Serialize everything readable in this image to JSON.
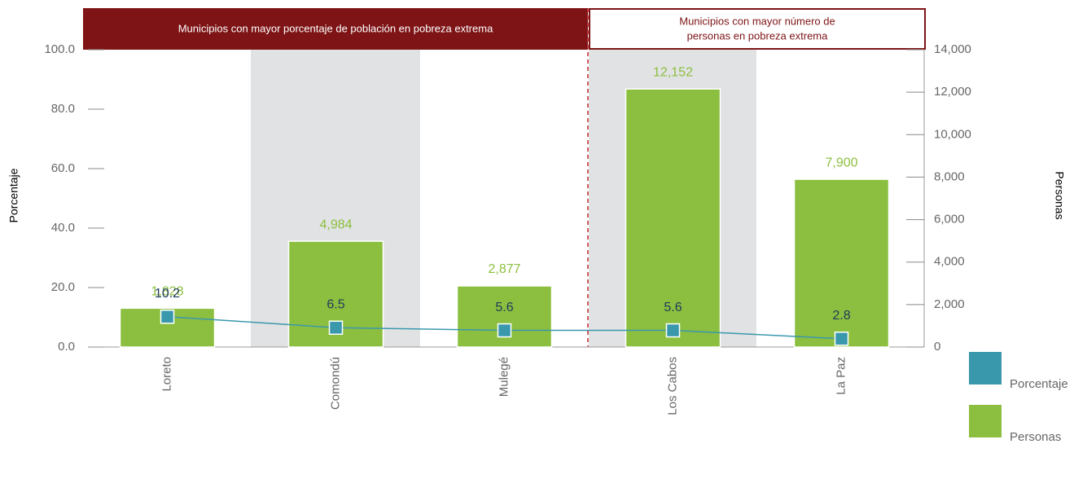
{
  "chart_data": {
    "type": "bar",
    "header_left": "Municipios con mayor porcentaje de población en pobreza extrema",
    "header_right": [
      "Municipios con mayor número de",
      "personas en pobreza extrema"
    ],
    "ylabel": "Porcentaje",
    "y2label": "Personas",
    "categories": [
      "Loreto",
      "Comondú",
      "Mulegé",
      "Los Cabos",
      "La Paz"
    ],
    "series": [
      {
        "name": "Porcentaje",
        "type": "line",
        "axis": "y",
        "color": "#3a98ad",
        "values": [
          10.2,
          6.5,
          5.6,
          5.6,
          2.8
        ]
      },
      {
        "name": "Personas",
        "type": "bar",
        "axis": "y2",
        "color": "#8cbf3f",
        "values": [
          1828,
          4984,
          2877,
          12152,
          7900
        ],
        "value_labels": [
          "1,828",
          "4,984",
          "2,877",
          "12,152",
          "7,900"
        ]
      }
    ],
    "ylim": [
      0,
      100
    ],
    "yticks": [
      {
        "value": 0,
        "label": "0.0"
      },
      {
        "value": 20,
        "label": "20.0"
      },
      {
        "value": 40,
        "label": "40.0"
      },
      {
        "value": 60,
        "label": "60.0"
      },
      {
        "value": 80,
        "label": "80.0"
      },
      {
        "value": 100,
        "label": "100.0"
      }
    ],
    "y2lim": [
      0,
      14000
    ],
    "y2ticks": [
      0,
      {
        "value": 2000,
        "label": "2,000"
      },
      {
        "value": 4000,
        "label": "4,000"
      },
      {
        "value": 6000,
        "label": "6,000"
      },
      {
        "value": 8000,
        "label": "8,000"
      },
      {
        "value": 10000,
        "label": "10,000"
      },
      {
        "value": 12000,
        "label": "12,000"
      },
      {
        "value": 14000,
        "label": "14,000"
      }
    ],
    "legend": "bottom-right"
  }
}
